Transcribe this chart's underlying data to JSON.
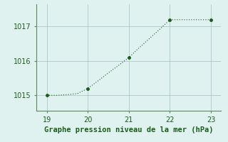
{
  "x": [
    19,
    19.25,
    19.5,
    19.75,
    20,
    20.25,
    20.5,
    20.75,
    21,
    21.25,
    21.5,
    21.75,
    22,
    22.25,
    22.5,
    22.75,
    23
  ],
  "y": [
    1015.0,
    1015.0,
    1015.02,
    1015.05,
    1015.2,
    1015.42,
    1015.65,
    1015.87,
    1016.1,
    1016.38,
    1016.65,
    1016.92,
    1017.2,
    1017.2,
    1017.2,
    1017.2,
    1017.2
  ],
  "marker_x": [
    19,
    20,
    21,
    22,
    23
  ],
  "marker_y": [
    1015.0,
    1015.2,
    1016.1,
    1017.2,
    1017.2
  ],
  "line_color": "#1a5c1a",
  "marker_color": "#1a5c1a",
  "bg_color": "#e0f2f0",
  "grid_color": "#b0c8c8",
  "spine_color": "#5a8a5a",
  "xlabel": "Graphe pression niveau de la mer (hPa)",
  "xlim": [
    18.75,
    23.25
  ],
  "ylim": [
    1014.55,
    1017.65
  ],
  "xticks": [
    19,
    20,
    21,
    22,
    23
  ],
  "yticks": [
    1015,
    1016,
    1017
  ],
  "tick_label_color": "#1a5c1a",
  "xlabel_color": "#1a5c1a",
  "xlabel_fontsize": 7.5,
  "tick_fontsize": 7
}
